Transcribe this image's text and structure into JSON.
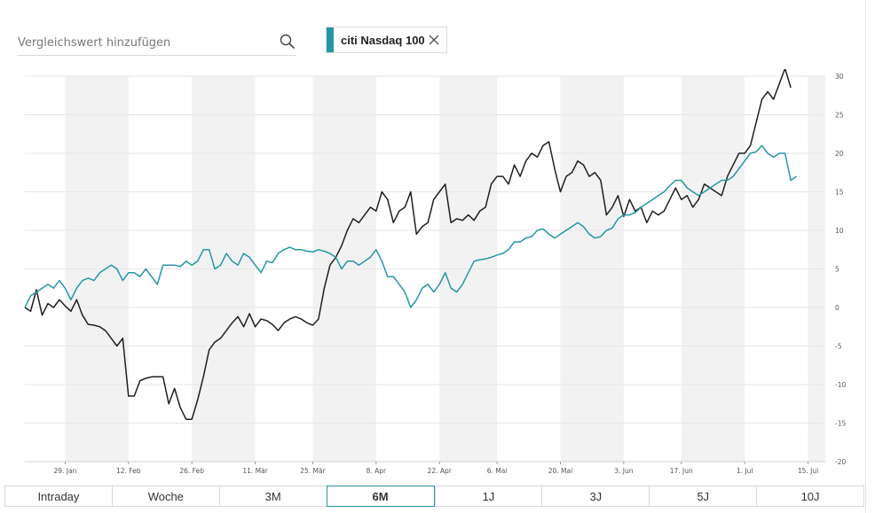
{
  "search": {
    "placeholder": "Vergleichswert hinzufügen",
    "value": "",
    "icon": "search-icon"
  },
  "chip": {
    "label": "citi Nasdaq 100",
    "stripe_color": "#2596a6",
    "close_icon": "close-icon"
  },
  "periods": {
    "active": "6M",
    "items": [
      "Intraday",
      "Woche",
      "3M",
      "6M",
      "1J",
      "3J",
      "5J",
      "10J"
    ]
  },
  "chart_data": {
    "type": "line",
    "title": "",
    "xlabel": "",
    "ylabel": "",
    "ylim": [
      -20,
      30
    ],
    "yticks": [
      30,
      25,
      20,
      15,
      10,
      5,
      0,
      -5,
      -10,
      -15,
      -20
    ],
    "xlim": [
      0,
      139
    ],
    "xticks": [
      {
        "label": "29. Jan",
        "x": 7
      },
      {
        "label": "12. Feb",
        "x": 18
      },
      {
        "label": "26. Feb",
        "x": 29
      },
      {
        "label": "11. Mär",
        "x": 40
      },
      {
        "label": "25. Mär",
        "x": 50
      },
      {
        "label": "8. Apr",
        "x": 61
      },
      {
        "label": "22. Apr",
        "x": 72
      },
      {
        "label": "6. Mai",
        "x": 82
      },
      {
        "label": "20. Mai",
        "x": 93
      },
      {
        "label": "3. Jun",
        "x": 104
      },
      {
        "label": "17. Jun",
        "x": 114
      },
      {
        "label": "1. Jul",
        "x": 125
      },
      {
        "label": "15. Jul",
        "x": 136
      }
    ],
    "shaded_bands": [
      [
        7,
        18
      ],
      [
        29,
        40
      ],
      [
        50,
        61
      ],
      [
        72,
        82
      ],
      [
        93,
        104
      ],
      [
        114,
        125
      ],
      [
        136,
        139
      ]
    ],
    "grid": true,
    "colors": {
      "black_series": "#1f1f1f",
      "teal_series": "#2596a6",
      "band": "#f2f2f2",
      "grid": "#e6e6e6"
    },
    "series": [
      {
        "name": "black",
        "color": "#1f1f1f",
        "points": [
          [
            0,
            0
          ],
          [
            1,
            -0.5
          ],
          [
            2,
            2.3
          ],
          [
            3,
            -1
          ],
          [
            4,
            0.5
          ],
          [
            5,
            0
          ],
          [
            6,
            1
          ],
          [
            7,
            0.2
          ],
          [
            8,
            -0.5
          ],
          [
            9,
            1
          ],
          [
            10,
            -1
          ],
          [
            11,
            -2.2
          ],
          [
            12,
            -2.3
          ],
          [
            13,
            -2.5
          ],
          [
            14,
            -3
          ],
          [
            15,
            -4
          ],
          [
            16,
            -5
          ],
          [
            17,
            -4
          ],
          [
            18,
            -11.5
          ],
          [
            19,
            -11.5
          ],
          [
            20,
            -9.5
          ],
          [
            21,
            -9.2
          ],
          [
            22,
            -9
          ],
          [
            23,
            -9
          ],
          [
            24,
            -9
          ],
          [
            25,
            -12.5
          ],
          [
            26,
            -10.5
          ],
          [
            27,
            -13
          ],
          [
            28,
            -14.5
          ],
          [
            29,
            -14.5
          ],
          [
            30,
            -12
          ],
          [
            31,
            -9
          ],
          [
            32,
            -5.5
          ],
          [
            33,
            -4.5
          ],
          [
            34,
            -4
          ],
          [
            35,
            -3
          ],
          [
            36,
            -2
          ],
          [
            37,
            -1.2
          ],
          [
            38,
            -2.5
          ],
          [
            39,
            -0.8
          ],
          [
            40,
            -2.5
          ],
          [
            41,
            -1.5
          ],
          [
            42,
            -1.7
          ],
          [
            43,
            -2.2
          ],
          [
            44,
            -3
          ],
          [
            45,
            -2
          ],
          [
            46,
            -1.5
          ],
          [
            47,
            -1.2
          ],
          [
            48,
            -1.5
          ],
          [
            49,
            -2
          ],
          [
            50,
            -2.3
          ],
          [
            51,
            -1.5
          ],
          [
            52,
            2.5
          ],
          [
            53,
            5.5
          ],
          [
            54,
            6.5
          ],
          [
            55,
            8
          ],
          [
            56,
            10
          ],
          [
            57,
            11.5
          ],
          [
            58,
            11
          ],
          [
            59,
            12
          ],
          [
            60,
            13
          ],
          [
            61,
            12.5
          ],
          [
            62,
            15
          ],
          [
            63,
            14
          ],
          [
            64,
            11
          ],
          [
            65,
            12.5
          ],
          [
            66,
            13
          ],
          [
            67,
            15
          ],
          [
            68,
            9.5
          ],
          [
            69,
            10.5
          ],
          [
            70,
            11
          ],
          [
            71,
            14
          ],
          [
            72,
            15
          ],
          [
            73,
            16
          ],
          [
            74,
            11
          ],
          [
            75,
            11.5
          ],
          [
            76,
            11.3
          ],
          [
            77,
            12
          ],
          [
            78,
            11.3
          ],
          [
            79,
            12.5
          ],
          [
            80,
            13
          ],
          [
            81,
            16
          ],
          [
            82,
            17
          ],
          [
            83,
            17
          ],
          [
            84,
            16
          ],
          [
            85,
            18.5
          ],
          [
            86,
            17
          ],
          [
            87,
            19
          ],
          [
            88,
            20
          ],
          [
            89,
            19.5
          ],
          [
            90,
            21
          ],
          [
            91,
            21.5
          ],
          [
            92,
            18
          ],
          [
            93,
            15
          ],
          [
            94,
            17
          ],
          [
            95,
            17.5
          ],
          [
            96,
            19
          ],
          [
            97,
            18.5
          ],
          [
            98,
            17
          ],
          [
            99,
            17.5
          ],
          [
            100,
            16.5
          ],
          [
            101,
            12
          ],
          [
            102,
            13
          ],
          [
            103,
            14.5
          ],
          [
            104,
            11.8
          ],
          [
            105,
            14
          ],
          [
            106,
            12.5
          ],
          [
            107,
            13
          ],
          [
            108,
            11
          ],
          [
            109,
            12.5
          ],
          [
            110,
            12
          ],
          [
            111,
            12.5
          ],
          [
            112,
            14
          ],
          [
            113,
            15.5
          ],
          [
            114,
            14
          ],
          [
            115,
            14.5
          ],
          [
            116,
            13
          ],
          [
            117,
            14
          ],
          [
            118,
            16
          ],
          [
            119,
            15.5
          ],
          [
            120,
            15
          ],
          [
            121,
            14.5
          ],
          [
            122,
            17
          ],
          [
            123,
            18.5
          ],
          [
            124,
            20
          ],
          [
            125,
            20
          ],
          [
            126,
            21
          ],
          [
            127,
            24
          ],
          [
            128,
            27
          ],
          [
            129,
            28
          ],
          [
            130,
            27
          ],
          [
            131,
            29
          ],
          [
            132,
            31
          ],
          [
            133,
            28.5
          ]
        ]
      },
      {
        "name": "teal",
        "color": "#2596a6",
        "points": [
          [
            0,
            0
          ],
          [
            1,
            1.5
          ],
          [
            2,
            2
          ],
          [
            3,
            2.5
          ],
          [
            4,
            3
          ],
          [
            5,
            2.5
          ],
          [
            6,
            3.5
          ],
          [
            7,
            2.5
          ],
          [
            8,
            1
          ],
          [
            9,
            2.5
          ],
          [
            10,
            3.5
          ],
          [
            11,
            3.8
          ],
          [
            12,
            3.5
          ],
          [
            13,
            4.5
          ],
          [
            14,
            5
          ],
          [
            15,
            5.5
          ],
          [
            16,
            5
          ],
          [
            17,
            3.5
          ],
          [
            18,
            4.5
          ],
          [
            19,
            4.5
          ],
          [
            20,
            4
          ],
          [
            21,
            5
          ],
          [
            22,
            4
          ],
          [
            23,
            3
          ],
          [
            24,
            5.5
          ],
          [
            25,
            5.5
          ],
          [
            26,
            5.5
          ],
          [
            27,
            5.3
          ],
          [
            28,
            6
          ],
          [
            29,
            5.5
          ],
          [
            30,
            6
          ],
          [
            31,
            7.5
          ],
          [
            32,
            7.5
          ],
          [
            33,
            5
          ],
          [
            34,
            5.5
          ],
          [
            35,
            7
          ],
          [
            36,
            6
          ],
          [
            37,
            5.5
          ],
          [
            38,
            7
          ],
          [
            39,
            6.5
          ],
          [
            40,
            5.5
          ],
          [
            41,
            4.5
          ],
          [
            42,
            6
          ],
          [
            43,
            5.8
          ],
          [
            44,
            7
          ],
          [
            45,
            7.5
          ],
          [
            46,
            7.8
          ],
          [
            47,
            7.5
          ],
          [
            48,
            7.5
          ],
          [
            49,
            7.3
          ],
          [
            50,
            7.2
          ],
          [
            51,
            7.5
          ],
          [
            52,
            7.3
          ],
          [
            53,
            7
          ],
          [
            54,
            6.5
          ],
          [
            55,
            5
          ],
          [
            56,
            6
          ],
          [
            57,
            6
          ],
          [
            58,
            5.5
          ],
          [
            59,
            6
          ],
          [
            60,
            6.5
          ],
          [
            61,
            7.5
          ],
          [
            62,
            6
          ],
          [
            63,
            4
          ],
          [
            64,
            4
          ],
          [
            65,
            3
          ],
          [
            66,
            2
          ],
          [
            67,
            0
          ],
          [
            68,
            1
          ],
          [
            69,
            2.5
          ],
          [
            70,
            3
          ],
          [
            71,
            2
          ],
          [
            72,
            3
          ],
          [
            73,
            4.5
          ],
          [
            74,
            2.5
          ],
          [
            75,
            2
          ],
          [
            76,
            3
          ],
          [
            77,
            4.5
          ],
          [
            78,
            6
          ],
          [
            79,
            6.2
          ],
          [
            80,
            6.3
          ],
          [
            81,
            6.5
          ],
          [
            82,
            6.8
          ],
          [
            83,
            7
          ],
          [
            84,
            7.5
          ],
          [
            85,
            8.5
          ],
          [
            86,
            8.5
          ],
          [
            87,
            9
          ],
          [
            88,
            9.2
          ],
          [
            89,
            10
          ],
          [
            90,
            10.2
          ],
          [
            91,
            9.5
          ],
          [
            92,
            9
          ],
          [
            93,
            9.5
          ],
          [
            94,
            10
          ],
          [
            95,
            10.5
          ],
          [
            96,
            11
          ],
          [
            97,
            10.5
          ],
          [
            98,
            9.5
          ],
          [
            99,
            9
          ],
          [
            100,
            9.2
          ],
          [
            101,
            10
          ],
          [
            102,
            10.3
          ],
          [
            103,
            11.5
          ],
          [
            104,
            12
          ],
          [
            105,
            12
          ],
          [
            106,
            12.3
          ],
          [
            107,
            13
          ],
          [
            108,
            13.5
          ],
          [
            109,
            14
          ],
          [
            110,
            14.5
          ],
          [
            111,
            15
          ],
          [
            112,
            15.8
          ],
          [
            113,
            16.5
          ],
          [
            114,
            16.5
          ],
          [
            115,
            15.5
          ],
          [
            116,
            15
          ],
          [
            117,
            14.5
          ],
          [
            118,
            15
          ],
          [
            119,
            15.5
          ],
          [
            120,
            16
          ],
          [
            121,
            16.5
          ],
          [
            122,
            16.5
          ],
          [
            123,
            17
          ],
          [
            124,
            18
          ],
          [
            125,
            19
          ],
          [
            126,
            20
          ],
          [
            127,
            20.2
          ],
          [
            128,
            21
          ],
          [
            129,
            20
          ],
          [
            130,
            19.5
          ],
          [
            131,
            20
          ],
          [
            132,
            20
          ],
          [
            133,
            16.5
          ],
          [
            134,
            17
          ]
        ]
      }
    ]
  }
}
